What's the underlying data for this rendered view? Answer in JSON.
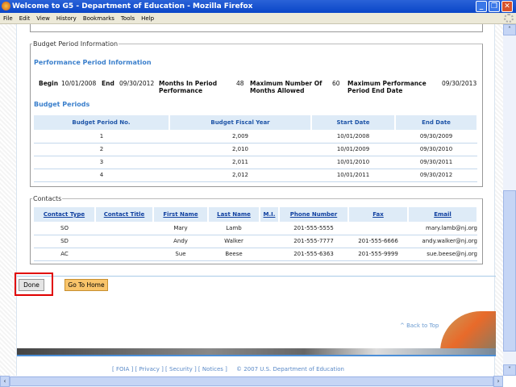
{
  "window": {
    "title": "Welcome to G5 - Department of Education - Mozilla Firefox"
  },
  "menu": [
    "File",
    "Edit",
    "View",
    "History",
    "Bookmarks",
    "Tools",
    "Help"
  ],
  "budget": {
    "legend": "Budget Period Information",
    "perf_heading": "Performance Period Information",
    "begin_label": "Begin",
    "begin": "10/01/2008",
    "end_label": "End",
    "end": "09/30/2012",
    "months_label": "Months In Period Performance",
    "months": "48",
    "max_months_label": "Maximum Number Of Months Allowed",
    "max_months": "60",
    "max_end_label": "Maximum Performance Period End Date",
    "max_end": "09/30/2013",
    "periods_heading": "Budget Periods",
    "columns": [
      "Budget Period No.",
      "Budget Fiscal Year",
      "Start Date",
      "End Date"
    ],
    "rows": [
      [
        "1",
        "2,009",
        "10/01/2008",
        "09/30/2009"
      ],
      [
        "2",
        "2,010",
        "10/01/2009",
        "09/30/2010"
      ],
      [
        "3",
        "2,011",
        "10/01/2010",
        "09/30/2011"
      ],
      [
        "4",
        "2,012",
        "10/01/2011",
        "09/30/2012"
      ]
    ]
  },
  "contacts": {
    "legend": "Contacts",
    "columns": [
      "Contact Type",
      "Contact Title",
      "First Name",
      "Last Name",
      "M.I.",
      "Phone Number",
      "Fax",
      "Email"
    ],
    "rows": [
      [
        "SO",
        "",
        "Mary",
        "Lamb",
        "",
        "201-555-5555",
        "",
        "mary.lamb@nj.org"
      ],
      [
        "SD",
        "",
        "Andy",
        "Walker",
        "",
        "201-555-7777",
        "201-555-6666",
        "andy.walker@nj.org"
      ],
      [
        "AC",
        "",
        "Sue",
        "Beese",
        "",
        "201-555-6363",
        "201-555-9999",
        "sue.beese@nj.org"
      ]
    ]
  },
  "buttons": {
    "done": "Done",
    "home": "Go To Home"
  },
  "back_to_top": "^ Back to Top",
  "footer": {
    "links": [
      "FOIA",
      "Privacy",
      "Security",
      "Notices"
    ],
    "copyright": "© 2007 U.S. Department of Education"
  },
  "colors": {
    "accent": "#3a7fcc",
    "highlight": "#e00000",
    "home_button": "#f9c46a"
  }
}
